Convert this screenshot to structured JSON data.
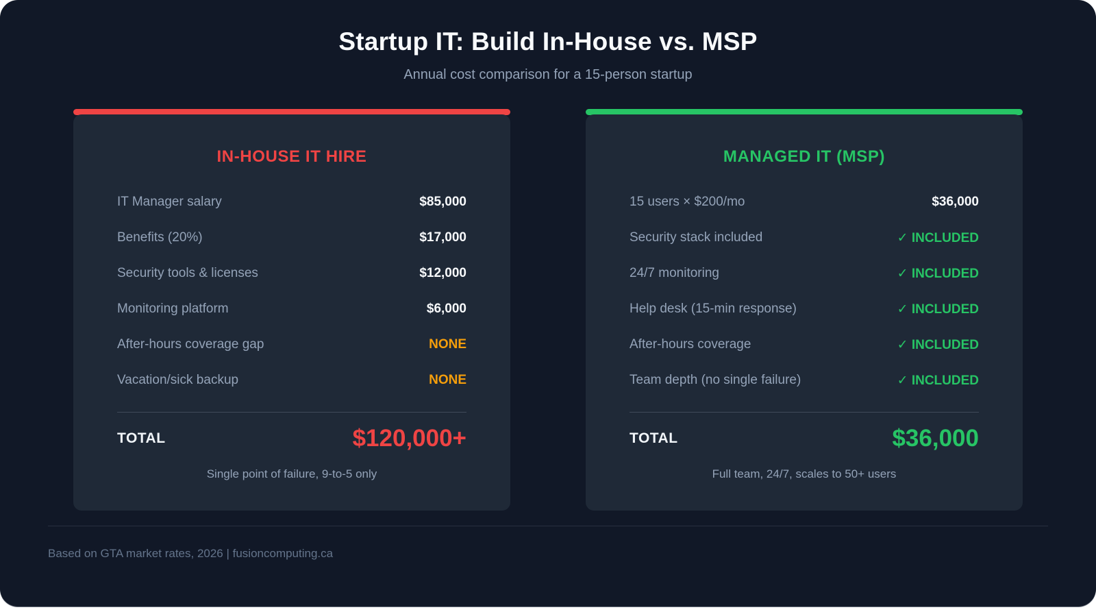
{
  "page": {
    "title": "Startup IT: Build In-House vs. MSP",
    "subtitle": "Annual cost comparison for a 15-person startup",
    "footer": "Based on GTA market rates, 2026 | fusioncomputing.ca"
  },
  "colors": {
    "page_background": "#111827",
    "card_background": "#1f2937",
    "accent_red": "#ef4444",
    "accent_green": "#27c465",
    "accent_orange": "#f59e0b",
    "label_gray": "#94a3b8",
    "value_white": "#f8fafc",
    "footer_gray": "#64748b"
  },
  "cards": [
    {
      "title": "IN-HOUSE IT HIRE",
      "accent_color": "#ef4444",
      "rows": [
        {
          "label": "IT Manager salary",
          "value": "$85,000",
          "value_style": "white"
        },
        {
          "label": "Benefits (20%)",
          "value": "$17,000",
          "value_style": "white"
        },
        {
          "label": "Security tools & licenses",
          "value": "$12,000",
          "value_style": "white"
        },
        {
          "label": "Monitoring platform",
          "value": "$6,000",
          "value_style": "white"
        },
        {
          "label": "After-hours coverage gap",
          "value": "NONE",
          "value_style": "orange"
        },
        {
          "label": "Vacation/sick backup",
          "value": "NONE",
          "value_style": "orange"
        }
      ],
      "total_label": "TOTAL",
      "total_value": "$120,000+",
      "note": "Single point of failure, 9-to-5 only"
    },
    {
      "title": "MANAGED IT (MSP)",
      "accent_color": "#27c465",
      "rows": [
        {
          "label": "15 users × $200/mo",
          "value": "$36,000",
          "value_style": "white"
        },
        {
          "label": "Security stack included",
          "value": "✓ INCLUDED",
          "value_style": "green"
        },
        {
          "label": "24/7 monitoring",
          "value": "✓ INCLUDED",
          "value_style": "green"
        },
        {
          "label": "Help desk (15-min response)",
          "value": "✓ INCLUDED",
          "value_style": "green"
        },
        {
          "label": "After-hours coverage",
          "value": "✓ INCLUDED",
          "value_style": "green"
        },
        {
          "label": "Team depth (no single failure)",
          "value": "✓ INCLUDED",
          "value_style": "green"
        }
      ],
      "total_label": "TOTAL",
      "total_value": "$36,000",
      "note": "Full team, 24/7, scales to 50+ users"
    }
  ],
  "chart_data": {
    "type": "table",
    "title": "Startup IT: Build In-House vs. MSP",
    "subtitle": "Annual cost comparison for a 15-person startup",
    "columns": [
      "IN-HOUSE IT HIRE",
      "MANAGED IT (MSP)"
    ],
    "in_house": {
      "items": [
        [
          "IT Manager salary",
          85000
        ],
        [
          "Benefits (20%)",
          17000
        ],
        [
          "Security tools & licenses",
          12000
        ],
        [
          "Monitoring platform",
          6000
        ],
        [
          "After-hours coverage gap",
          "NONE"
        ],
        [
          "Vacation/sick backup",
          "NONE"
        ]
      ],
      "total": "$120,000+",
      "total_numeric": 120000,
      "note": "Single point of failure, 9-to-5 only"
    },
    "msp": {
      "items": [
        [
          "15 users × $200/mo",
          36000
        ],
        [
          "Security stack included",
          "INCLUDED"
        ],
        [
          "24/7 monitoring",
          "INCLUDED"
        ],
        [
          "Help desk (15-min response)",
          "INCLUDED"
        ],
        [
          "After-hours coverage",
          "INCLUDED"
        ],
        [
          "Team depth (no single failure)",
          "INCLUDED"
        ]
      ],
      "total": "$36,000",
      "total_numeric": 36000,
      "note": "Full team, 24/7, scales to 50+ users"
    },
    "source": "Based on GTA market rates, 2026 | fusioncomputing.ca"
  }
}
